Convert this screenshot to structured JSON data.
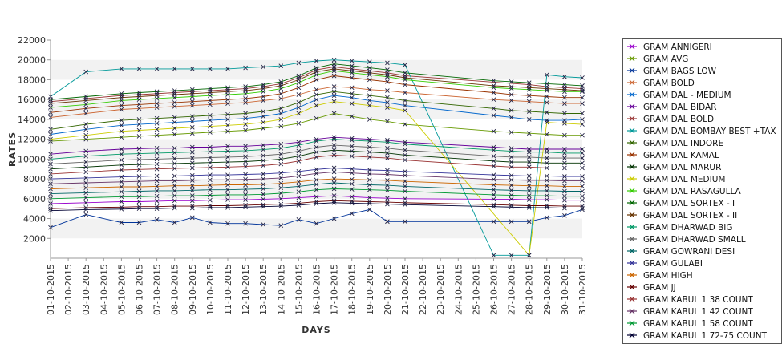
{
  "chart_data": {
    "type": "line",
    "title": "",
    "xlabel": "DAYS",
    "ylabel": "RATES",
    "ylim": [
      0,
      22000
    ],
    "yticks": [
      2000,
      4000,
      6000,
      8000,
      10000,
      12000,
      14000,
      16000,
      18000,
      20000,
      22000
    ],
    "grid": "alternating horizontal bands",
    "legend_position": "right",
    "marker": "x",
    "categories": [
      "01-10-2015",
      "02-10-2015",
      "03-10-2015",
      "04-10-2015",
      "05-10-2015",
      "06-10-2015",
      "07-10-2015",
      "08-10-2015",
      "09-10-2015",
      "10-10-2015",
      "11-10-2015",
      "12-10-2015",
      "13-10-2015",
      "14-10-2015",
      "15-10-2015",
      "16-10-2015",
      "17-10-2015",
      "18-10-2015",
      "19-10-2015",
      "20-10-2015",
      "21-10-2015",
      "22-10-2015",
      "23-10-2015",
      "24-10-2015",
      "25-10-2015",
      "26-10-2015",
      "27-10-2015",
      "28-10-2015",
      "29-10-2015",
      "30-10-2015",
      "31-10-2015"
    ],
    "series": [
      {
        "name": "GRAM ANNIGERI",
        "color": "#9900cc",
        "values": [
          5500,
          null,
          5600,
          null,
          5700,
          5700,
          5750,
          5800,
          5800,
          5850,
          5900,
          5900,
          5950,
          6000,
          6100,
          6200,
          6300,
          6200,
          6100,
          6050,
          6000,
          null,
          null,
          null,
          null,
          5950,
          5950,
          5900,
          5900,
          5850,
          5850
        ]
      },
      {
        "name": "GRAM AVG",
        "color": "#669900",
        "values": [
          11800,
          null,
          12000,
          null,
          12200,
          12300,
          12400,
          12500,
          12600,
          12700,
          12800,
          12900,
          13100,
          13300,
          13600,
          14100,
          14600,
          14300,
          14000,
          13800,
          13500,
          null,
          null,
          null,
          null,
          12800,
          12700,
          12600,
          12500,
          12400,
          12400
        ]
      },
      {
        "name": "GRAM BAGS LOW",
        "color": "#003399",
        "values": [
          3100,
          null,
          4400,
          null,
          3600,
          3600,
          3900,
          3600,
          4100,
          3600,
          3500,
          3500,
          3400,
          3300,
          3900,
          3500,
          4000,
          4500,
          4900,
          3700,
          3700,
          null,
          null,
          null,
          null,
          3700,
          3700,
          3700,
          4100,
          4300,
          4900
        ]
      },
      {
        "name": "GRAM BOLD",
        "color": "#cc6633",
        "values": [
          14200,
          null,
          14600,
          null,
          15000,
          15100,
          15200,
          15300,
          15400,
          15500,
          15600,
          15700,
          15900,
          16100,
          16500,
          17000,
          17300,
          17200,
          17000,
          16900,
          16700,
          null,
          null,
          null,
          null,
          16000,
          15900,
          15800,
          15700,
          15600,
          15600
        ]
      },
      {
        "name": "GRAM DAL - MEDIUM",
        "color": "#0066cc",
        "values": [
          12500,
          null,
          13000,
          null,
          13400,
          13500,
          13600,
          13700,
          13800,
          13900,
          14000,
          14100,
          14300,
          14600,
          15200,
          16000,
          16400,
          16200,
          15900,
          15700,
          15400,
          null,
          null,
          null,
          null,
          14400,
          14200,
          14000,
          13900,
          13900,
          14000
        ]
      },
      {
        "name": "GRAM DAL BIDAR",
        "color": "#660099",
        "values": [
          10500,
          null,
          10800,
          null,
          11000,
          11050,
          11100,
          11100,
          11200,
          11200,
          11300,
          11300,
          11400,
          11500,
          11700,
          12000,
          12200,
          12100,
          12000,
          11900,
          11700,
          null,
          null,
          null,
          null,
          11200,
          11100,
          11000,
          11000,
          11000,
          11000
        ]
      },
      {
        "name": "GRAM DAL BOLD",
        "color": "#993333",
        "values": [
          15800,
          null,
          16100,
          null,
          16400,
          16500,
          16600,
          16700,
          16800,
          16900,
          17000,
          17100,
          17300,
          17600,
          18200,
          19000,
          19300,
          19100,
          18900,
          18700,
          18400,
          null,
          null,
          null,
          null,
          null,
          null,
          17500,
          17300,
          17200,
          17100
        ]
      },
      {
        "name": "GRAM DAL BOMBAY BEST +TAX",
        "color": "#009999",
        "values": [
          16300,
          null,
          18800,
          null,
          19100,
          19100,
          19100,
          19100,
          19100,
          19100,
          19100,
          19200,
          19300,
          19400,
          19700,
          19900,
          20000,
          19900,
          19800,
          19700,
          19500,
          null,
          null,
          null,
          null,
          300,
          300,
          300,
          18500,
          18300,
          18200
        ]
      },
      {
        "name": "GRAM DAL INDORE",
        "color": "#336600",
        "values": [
          13000,
          null,
          13500,
          null,
          13900,
          14000,
          14100,
          14200,
          14300,
          14400,
          14500,
          14600,
          14800,
          15100,
          15700,
          16500,
          16800,
          16600,
          16400,
          16200,
          15900,
          null,
          null,
          null,
          null,
          15100,
          14900,
          14800,
          14700,
          14600,
          14600
        ]
      },
      {
        "name": "GRAM DAL KAMAL",
        "color": "#993300",
        "values": [
          14700,
          null,
          15100,
          null,
          15400,
          15500,
          15600,
          15700,
          15800,
          15900,
          16000,
          16100,
          16300,
          16600,
          17200,
          18000,
          18400,
          18200,
          18000,
          17800,
          17500,
          null,
          null,
          null,
          null,
          16700,
          16500,
          16400,
          16300,
          16200,
          16200
        ]
      },
      {
        "name": "GRAM DAL MARUR",
        "color": "#003300",
        "values": [
          9000,
          null,
          9200,
          null,
          9400,
          9450,
          9500,
          9550,
          9600,
          9650,
          9700,
          9750,
          9850,
          10000,
          10300,
          10700,
          10900,
          10800,
          10700,
          10600,
          10400,
          null,
          null,
          null,
          null,
          9800,
          9700,
          9700,
          9600,
          9600,
          9600
        ]
      },
      {
        "name": "GRAM DAL MEDIUM",
        "color": "#cccc00",
        "values": [
          12000,
          null,
          12400,
          null,
          12800,
          12900,
          13000,
          13100,
          13200,
          13300,
          13400,
          13500,
          13700,
          14000,
          14600,
          15400,
          15800,
          15600,
          15400,
          15200,
          14900,
          null,
          null,
          null,
          null,
          null,
          null,
          300,
          13700,
          13600,
          13500
        ]
      },
      {
        "name": "GRAM DAL RASAGULLA",
        "color": "#33cc00",
        "values": [
          15200,
          null,
          15500,
          null,
          15900,
          16000,
          16100,
          16200,
          16300,
          16400,
          16500,
          16600,
          16800,
          17100,
          17700,
          18500,
          18900,
          18700,
          18500,
          18300,
          18000,
          null,
          null,
          null,
          null,
          17200,
          17100,
          17000,
          16900,
          16800,
          16800
        ]
      },
      {
        "name": "GRAM DAL SORTEX - I",
        "color": "#006600",
        "values": [
          16000,
          null,
          16300,
          null,
          16600,
          16700,
          16800,
          16900,
          17000,
          17100,
          17200,
          17300,
          17500,
          17800,
          18400,
          19200,
          19600,
          19400,
          19200,
          19000,
          18700,
          null,
          null,
          null,
          null,
          17900,
          17800,
          17700,
          17600,
          17500,
          17400
        ]
      },
      {
        "name": "GRAM DAL SORTEX - II",
        "color": "#663300",
        "values": [
          15600,
          null,
          15900,
          null,
          16200,
          16300,
          16400,
          16500,
          16600,
          16700,
          16800,
          16900,
          17100,
          17400,
          18000,
          18800,
          19100,
          18900,
          18700,
          18500,
          18200,
          null,
          null,
          null,
          null,
          17400,
          17300,
          17200,
          17100,
          17000,
          16900
        ]
      },
      {
        "name": "GRAM DHARWAD BIG",
        "color": "#009966",
        "values": [
          10000,
          null,
          10300,
          null,
          10500,
          10550,
          10600,
          10650,
          10700,
          10750,
          10800,
          10850,
          10950,
          11100,
          11400,
          11800,
          12000,
          11900,
          11800,
          11700,
          11500,
          null,
          null,
          null,
          null,
          10900,
          10800,
          10700,
          10700,
          10600,
          10600
        ]
      },
      {
        "name": "GRAM DHARWAD SMALL",
        "color": "#666666",
        "values": [
          9500,
          null,
          9700,
          null,
          9900,
          9950,
          10000,
          10050,
          10100,
          10150,
          10200,
          10250,
          10350,
          10500,
          10800,
          11200,
          11400,
          11300,
          11200,
          11100,
          10900,
          null,
          null,
          null,
          null,
          10300,
          10200,
          10200,
          10100,
          10100,
          10100
        ]
      },
      {
        "name": "GRAM GOWRANI DESI",
        "color": "#006666",
        "values": [
          6500,
          null,
          6600,
          null,
          6700,
          6750,
          6800,
          6800,
          6850,
          6900,
          6900,
          6950,
          7000,
          7100,
          7250,
          7450,
          7600,
          7500,
          7400,
          7350,
          7250,
          null,
          null,
          null,
          null,
          6900,
          6850,
          6800,
          6800,
          6750,
          6750
        ]
      },
      {
        "name": "GRAM GULABI",
        "color": "#333399",
        "values": [
          8000,
          null,
          8100,
          null,
          8200,
          8250,
          8300,
          8300,
          8350,
          8400,
          8400,
          8450,
          8500,
          8600,
          8750,
          8950,
          9100,
          9000,
          8900,
          8850,
          8750,
          null,
          null,
          null,
          null,
          8400,
          8350,
          8300,
          8300,
          8250,
          8250
        ]
      },
      {
        "name": "GRAM HIGH",
        "color": "#cc6600",
        "values": [
          7000,
          null,
          7100,
          null,
          7200,
          7200,
          7250,
          7300,
          7300,
          7350,
          7400,
          7400,
          7450,
          7550,
          7700,
          7900,
          8000,
          7950,
          7900,
          7850,
          7750,
          null,
          null,
          null,
          null,
          7400,
          7350,
          7300,
          7300,
          7250,
          7250
        ]
      },
      {
        "name": "GRAM JJ",
        "color": "#660000",
        "values": [
          5000,
          null,
          5100,
          null,
          5150,
          5200,
          5200,
          5250,
          5250,
          5300,
          5300,
          5350,
          5400,
          5450,
          5550,
          5700,
          5800,
          5750,
          5700,
          5650,
          5600,
          null,
          null,
          null,
          null,
          5400,
          5350,
          5300,
          5300,
          5250,
          5250
        ]
      },
      {
        "name": "GRAM KABUL 1 38 COUNT",
        "color": "#993333",
        "values": [
          8500,
          null,
          8700,
          null,
          8900,
          8950,
          9000,
          9050,
          9100,
          9150,
          9200,
          9250,
          9350,
          9500,
          9800,
          10200,
          10400,
          10300,
          10200,
          10100,
          9900,
          null,
          null,
          null,
          null,
          9300,
          9200,
          9200,
          9100,
          9100,
          9100
        ]
      },
      {
        "name": "GRAM KABUL 1 42 COUNT",
        "color": "#663366",
        "values": [
          7500,
          null,
          7600,
          null,
          7700,
          7750,
          7800,
          7800,
          7850,
          7900,
          7900,
          7950,
          8000,
          8100,
          8300,
          8550,
          8700,
          8600,
          8500,
          8450,
          8350,
          null,
          null,
          null,
          null,
          7950,
          7900,
          7850,
          7850,
          7800,
          7800
        ]
      },
      {
        "name": "GRAM KABUL 1 58 COUNT",
        "color": "#009933",
        "values": [
          6000,
          null,
          6100,
          null,
          6200,
          6200,
          6250,
          6300,
          6300,
          6350,
          6400,
          6400,
          6450,
          6550,
          6700,
          6900,
          7000,
          6950,
          6900,
          6850,
          6750,
          null,
          null,
          null,
          null,
          6400,
          6350,
          6300,
          6300,
          6250,
          6250
        ]
      },
      {
        "name": "GRAM KABUL 1 72-75 COUNT",
        "color": "#000033",
        "values": [
          4800,
          null,
          4900,
          null,
          4950,
          5000,
          5000,
          5050,
          5050,
          5100,
          5100,
          5150,
          5200,
          5250,
          5350,
          5500,
          5600,
          5550,
          5500,
          5450,
          5400,
          null,
          null,
          null,
          null,
          5200,
          5150,
          5100,
          5100,
          5050,
          5050
        ]
      }
    ]
  }
}
